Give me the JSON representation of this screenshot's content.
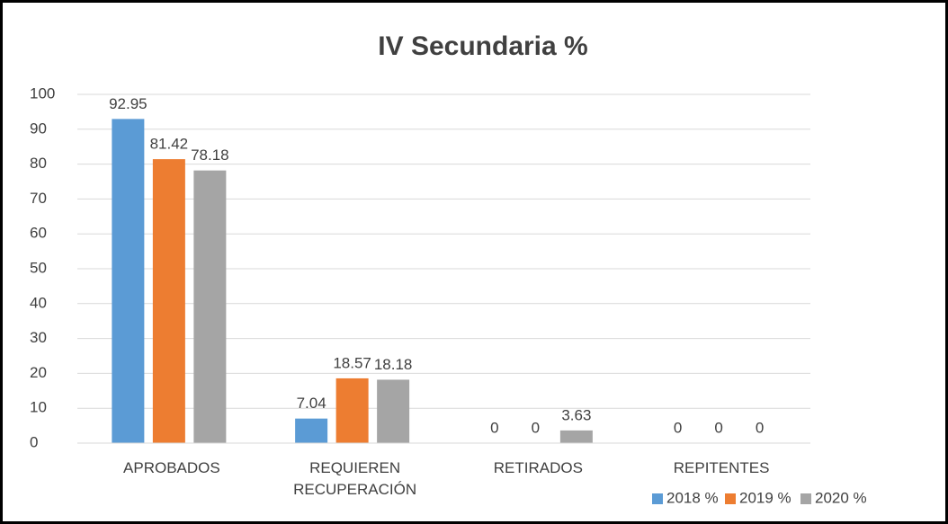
{
  "chart_data": {
    "type": "bar",
    "title": "IV Secundaria %",
    "categories": [
      "APROBADOS",
      "REQUIEREN RECUPERACIÓN",
      "RETIRADOS",
      "REPITENTES"
    ],
    "series": [
      {
        "name": "2018 %",
        "color": "#5b9bd5",
        "values": [
          92.95,
          7.04,
          0,
          0
        ]
      },
      {
        "name": "2019 %",
        "color": "#ed7d31",
        "values": [
          81.42,
          18.57,
          0,
          0
        ]
      },
      {
        "name": "2020 %",
        "color": "#a5a5a5",
        "values": [
          78.18,
          18.18,
          3.63,
          0
        ]
      }
    ],
    "ylim": [
      0,
      100
    ],
    "yticks": [
      0,
      10,
      20,
      30,
      40,
      50,
      60,
      70,
      80,
      90,
      100
    ],
    "grid": true,
    "legend": "bottom-right"
  }
}
